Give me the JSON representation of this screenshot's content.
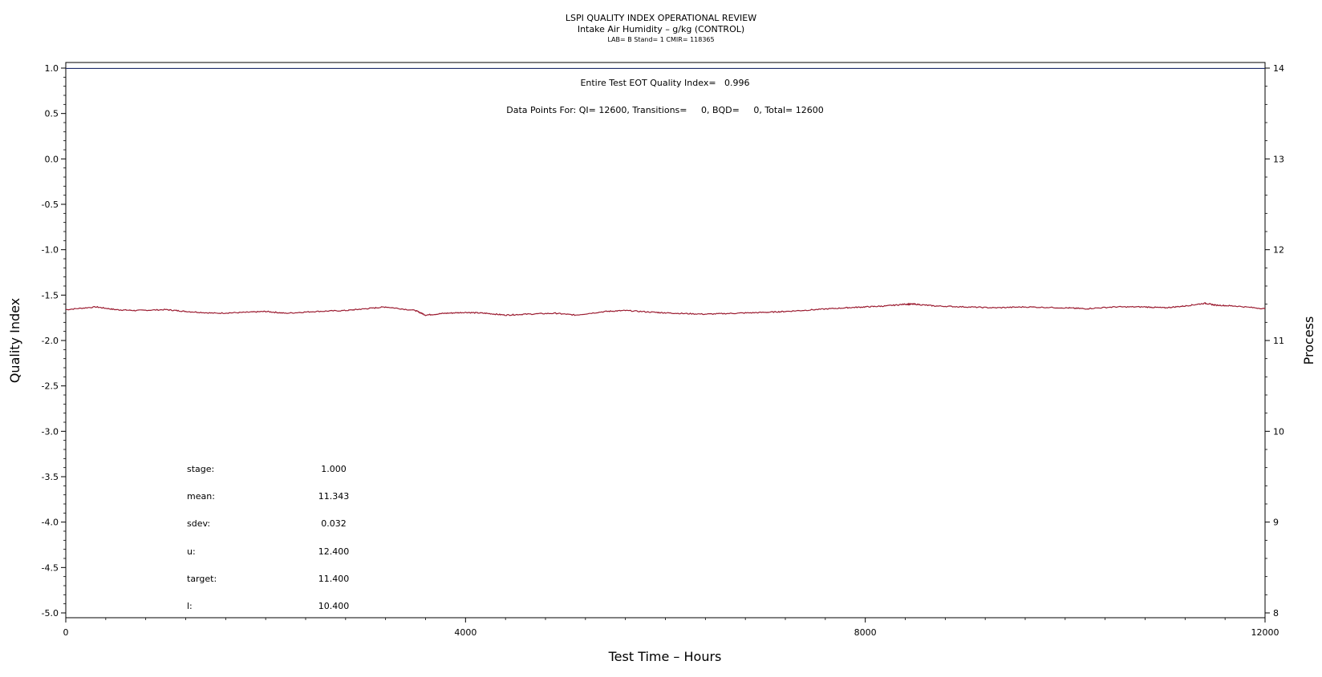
{
  "chart_data": {
    "type": "line",
    "title": "LSPI QUALITY INDEX OPERATIONAL REVIEW",
    "subtitle": "Intake Air Humidity – g/kg (CONTROL)",
    "subtitle2": "LAB= B Stand= 1 CMIR= 118365",
    "xlabel": "Test Time – Hours",
    "ylabel": "Quality Index",
    "y2label": "Process",
    "xlim": [
      0,
      12000
    ],
    "ylim": [
      -5.0,
      1.0
    ],
    "y2lim": [
      8,
      14
    ],
    "x_ticks": [
      "0",
      "4000",
      "8000",
      "12000"
    ],
    "x_tick_values": [
      0,
      4000,
      8000,
      12000
    ],
    "y_ticks": [
      "1.0",
      "0.5",
      "0.0",
      "-0.5",
      "-1.0",
      "-1.5",
      "-2.0",
      "-2.5",
      "-3.0",
      "-3.5",
      "-4.0",
      "-4.5",
      "-5.0"
    ],
    "y_tick_values": [
      1.0,
      0.5,
      0.0,
      -0.5,
      -1.0,
      -1.5,
      -2.0,
      -2.5,
      -3.0,
      -3.5,
      -4.0,
      -4.5,
      -5.0
    ],
    "y2_ticks": [
      "14",
      "13",
      "12",
      "11",
      "10",
      "9",
      "8"
    ],
    "y2_tick_values": [
      14,
      13,
      12,
      11,
      10,
      9,
      8
    ],
    "reference_line_y": 0.996,
    "annotation_qi": "Entire Test EOT Quality Index=   0.996",
    "annotation_points": "Data Points For: QI= 12600, Transitions=     0, BQD=     0, Total= 12600",
    "stats": [
      {
        "label": "stage:",
        "value": "1.000"
      },
      {
        "label": "mean:",
        "value": "11.343"
      },
      {
        "label": "sdev:",
        "value": "0.032"
      },
      {
        "label": "u:",
        "value": "12.400"
      },
      {
        "label": "target:",
        "value": "11.400"
      },
      {
        "label": "l:",
        "value": "10.400"
      }
    ],
    "series": [
      {
        "axis": "y2",
        "color": "#9b1b30",
        "x": [
          0,
          300,
          500,
          700,
          1000,
          1200,
          1500,
          1800,
          2000,
          2200,
          2500,
          2800,
          3000,
          3200,
          3500,
          3600,
          3800,
          4000,
          4200,
          4400,
          4600,
          4900,
          5100,
          5400,
          5600,
          5900,
          6100,
          6400,
          6700,
          7000,
          7200,
          7500,
          7800,
          8000,
          8200,
          8400,
          8500,
          8700,
          9000,
          9300,
          9600,
          10000,
          10200,
          10500,
          10800,
          11000,
          11200,
          11400,
          11500,
          11700,
          12000
        ],
        "y": [
          11.34,
          11.37,
          11.34,
          11.33,
          11.34,
          11.32,
          11.3,
          11.31,
          11.32,
          11.3,
          11.32,
          11.33,
          11.35,
          11.37,
          11.33,
          11.28,
          11.3,
          11.31,
          11.3,
          11.28,
          11.29,
          11.3,
          11.28,
          11.32,
          11.33,
          11.31,
          11.3,
          11.29,
          11.3,
          11.31,
          11.32,
          11.34,
          11.36,
          11.37,
          11.38,
          11.4,
          11.4,
          11.38,
          11.37,
          11.36,
          11.37,
          11.36,
          11.35,
          11.37,
          11.37,
          11.36,
          11.38,
          11.41,
          11.39,
          11.38,
          11.35
        ]
      }
    ]
  }
}
